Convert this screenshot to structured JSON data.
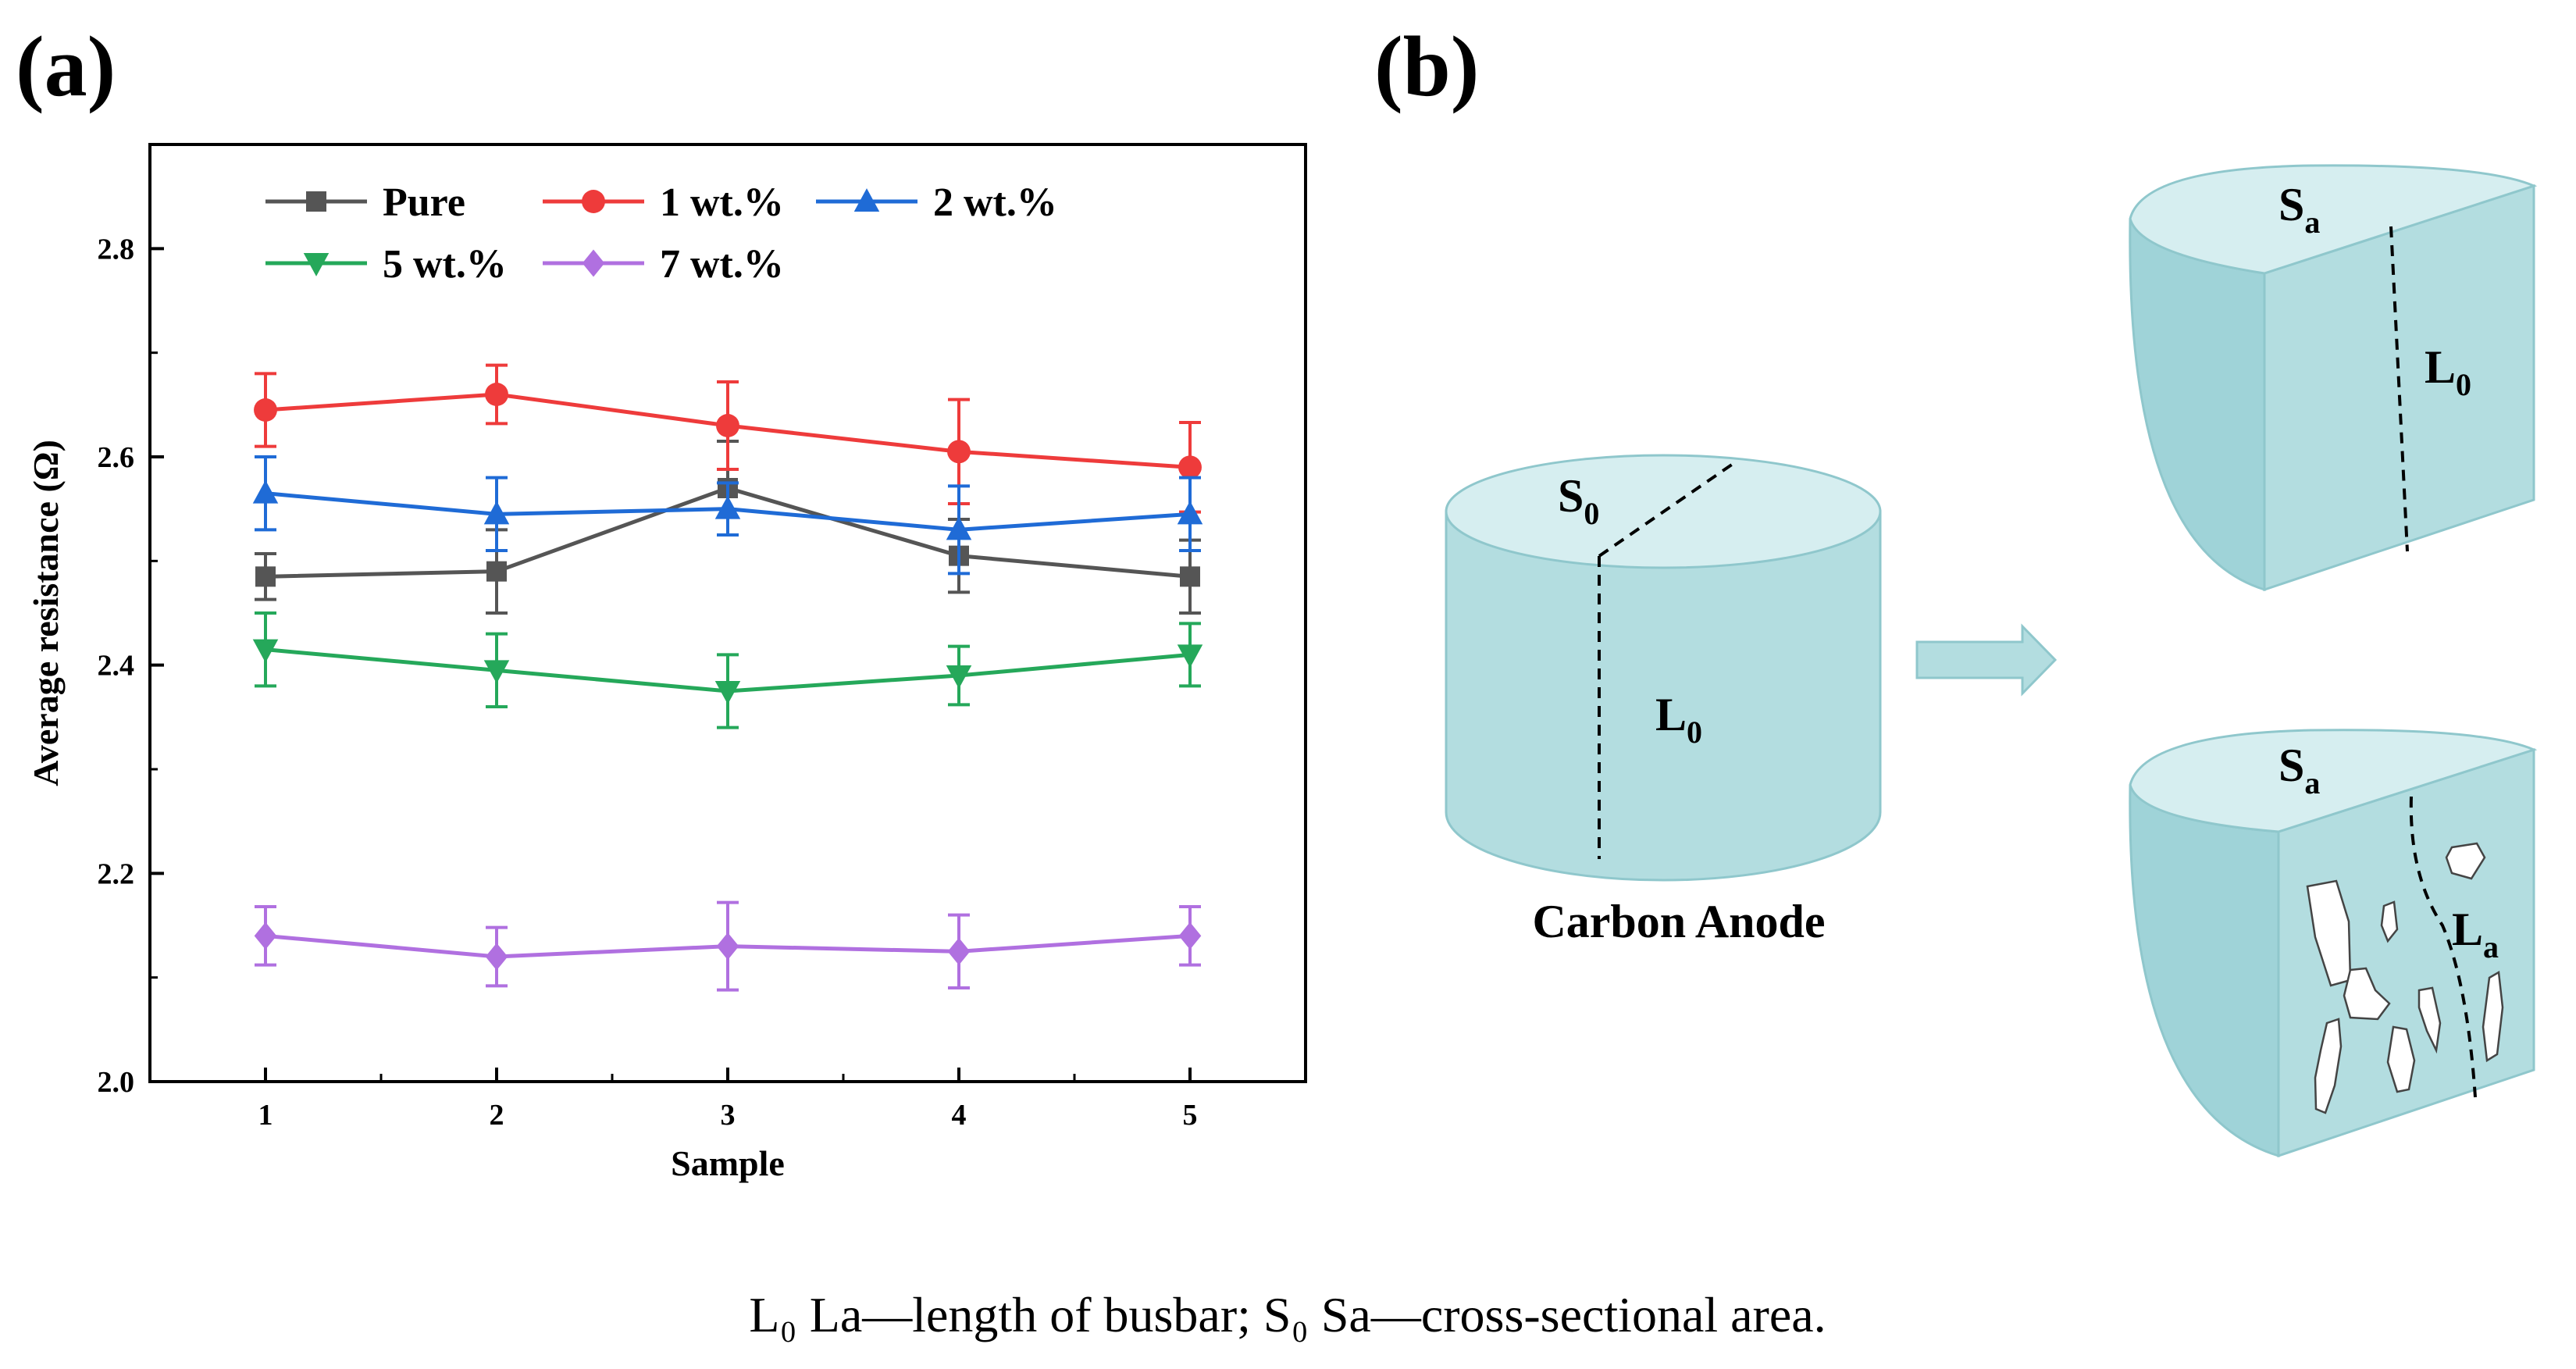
{
  "panels": {
    "a_label": "(a)",
    "b_label": "(b)"
  },
  "chart_data": {
    "type": "line",
    "title": "",
    "xlabel": "Sample",
    "ylabel": "Average resistance (Ω)",
    "x": [
      1,
      2,
      3,
      4,
      5
    ],
    "x_tick_labels": [
      "1",
      "2",
      "3",
      "4",
      "5"
    ],
    "xlim": [
      0.5,
      5.5
    ],
    "ylim": [
      2.0,
      2.9
    ],
    "y_ticks": [
      2.0,
      2.2,
      2.4,
      2.6,
      2.8
    ],
    "y_tick_labels": [
      "2.0",
      "2.2",
      "2.4",
      "2.6",
      "2.8"
    ],
    "grid": false,
    "legend_position": "top-left",
    "series": [
      {
        "name": "Pure",
        "color": "#555555",
        "marker": "square",
        "values": [
          2.485,
          2.49,
          2.57,
          2.505,
          2.485
        ],
        "errors": [
          0.022,
          0.04,
          0.045,
          0.035,
          0.035
        ]
      },
      {
        "name": "1 wt.%",
        "color": "#ee3b3b",
        "marker": "circle",
        "values": [
          2.645,
          2.66,
          2.63,
          2.605,
          2.59
        ],
        "errors": [
          0.035,
          0.028,
          0.042,
          0.05,
          0.043
        ]
      },
      {
        "name": "2 wt.%",
        "color": "#1f6bd6",
        "marker": "triangle-up",
        "values": [
          2.565,
          2.545,
          2.55,
          2.53,
          2.545
        ],
        "errors": [
          0.035,
          0.035,
          0.025,
          0.042,
          0.035
        ]
      },
      {
        "name": "5 wt.%",
        "color": "#25a85a",
        "marker": "triangle-down",
        "values": [
          2.415,
          2.395,
          2.375,
          2.39,
          2.41
        ],
        "errors": [
          0.035,
          0.035,
          0.035,
          0.028,
          0.03
        ]
      },
      {
        "name": "7 wt.%",
        "color": "#b070e0",
        "marker": "diamond",
        "values": [
          2.14,
          2.12,
          2.13,
          2.125,
          2.14
        ],
        "errors": [
          0.028,
          0.028,
          0.042,
          0.035,
          0.028
        ]
      }
    ]
  },
  "diagram": {
    "cylinder_top_label": "S",
    "cylinder_top_sub": "0",
    "cylinder_length_label": "L",
    "cylinder_length_sub": "0",
    "cylinder_caption": "Carbon Anode",
    "upper_half_top_label": "S",
    "upper_half_top_sub": "a",
    "upper_half_length_label": "L",
    "upper_half_length_sub": "0",
    "lower_half_top_label": "S",
    "lower_half_top_sub": "a",
    "lower_half_length_label": "L",
    "lower_half_length_sub": "a",
    "fill_color": "#b3dde0",
    "top_color": "#d6eef0",
    "arrow_color": "#b3dde0"
  },
  "caption": "L₀ La—length of busbar; S₀ Sa—cross-sectional area."
}
